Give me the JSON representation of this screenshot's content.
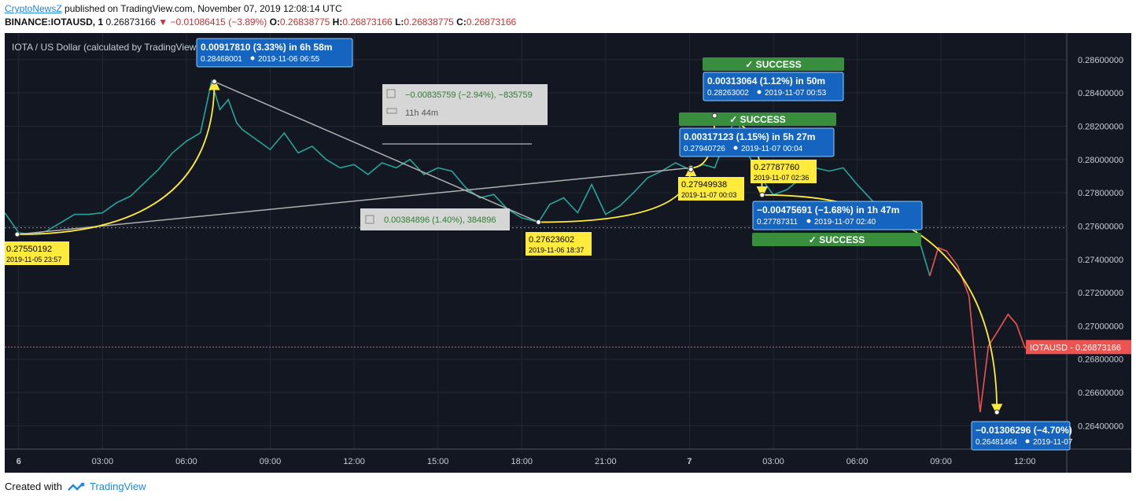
{
  "header": {
    "publisher": "CryptoNewsZ",
    "published_text": " published on TradingView.com, November 07, 2019 12:08:14 UTC",
    "symbol": "BINANCE:IOTAUSD, 1",
    "last": "0.26873166",
    "arrow": "▼",
    "change": "−0.01086415 (−3.89%)",
    "o_label": "O:",
    "o_value": "0.26838775",
    "h_label": "H:",
    "h_value": "0.26873166",
    "l_label": "L:",
    "l_value": "0.26838775",
    "c_label": "C:",
    "c_value": "0.26873166"
  },
  "footer": {
    "created_with": "Created with",
    "brand": "TradingView"
  },
  "colors": {
    "background": "#131722",
    "up": "#26a69a",
    "down": "#ef5350",
    "annotation_yellow": "#ffeb3b",
    "callout_blue": "#1565c0",
    "success_green": "#388e3c",
    "trendline": "#b0b0b0"
  },
  "chart_data": {
    "type": "line",
    "title": "IOTA / US Dollar (calculated by TradingView) BINANCE",
    "symbol_label": "IOTAUSD",
    "last_price": 0.26873166,
    "ylim": [
      0.2626,
      0.2876
    ],
    "y_ticks": [
      0.286,
      0.284,
      0.282,
      0.28,
      0.278,
      0.276,
      0.274,
      0.272,
      0.27,
      0.268,
      0.266,
      0.264
    ],
    "y_tick_labels": [
      "0.28600000",
      "0.28400000",
      "0.28200000",
      "0.28000000",
      "0.27800000",
      "0.27600000",
      "0.27400000",
      "0.27200000",
      "0.27000000",
      "0.26800000",
      "0.26600000",
      "0.26400000"
    ],
    "x_range_hours": [
      -0.5,
      37.5
    ],
    "x_ticks": [
      0,
      3,
      6,
      9,
      12,
      15,
      18,
      21,
      24,
      27,
      30,
      33,
      36
    ],
    "x_tick_labels": [
      "6",
      "03:00",
      "06:00",
      "09:00",
      "12:00",
      "15:00",
      "18:00",
      "21:00",
      "7",
      "03:00",
      "06:00",
      "09:00",
      "12:00"
    ],
    "series": [
      {
        "x": [
          -0.5,
          0,
          0.5,
          1,
          1.5,
          2,
          2.5,
          3,
          3.5,
          4,
          4.5,
          5,
          5.5,
          6,
          6.5,
          6.9,
          7.2,
          7.5,
          7.8,
          8,
          8.5,
          9,
          9.5,
          10,
          10.5,
          11,
          11.5,
          12,
          12.5,
          13,
          13.5,
          14,
          14.5,
          15,
          15.5,
          16,
          16.5,
          17,
          17.5,
          18,
          18.6,
          19,
          19.5,
          20,
          20.5,
          21,
          21.5,
          22,
          22.5,
          23,
          23.5,
          24,
          24.5,
          24.9,
          25.3,
          25.7,
          26,
          26.3,
          26.6,
          27,
          27.5,
          28,
          28.5,
          29,
          29.5,
          30,
          30.5,
          31,
          31.5,
          32,
          32.6,
          32.9,
          33.2,
          33.6,
          34,
          34.4,
          34.7,
          35,
          35.4,
          35.7,
          36,
          36.3
        ],
        "y": [
          0.2768,
          0.2756,
          0.2755,
          0.2757,
          0.2762,
          0.2767,
          0.2767,
          0.2768,
          0.2774,
          0.2778,
          0.2786,
          0.2794,
          0.2804,
          0.2811,
          0.2816,
          0.28468,
          0.283,
          0.2836,
          0.2822,
          0.2818,
          0.2812,
          0.2806,
          0.2816,
          0.2804,
          0.2808,
          0.28,
          0.2795,
          0.2797,
          0.2791,
          0.2798,
          0.2795,
          0.28,
          0.2791,
          0.2795,
          0.2793,
          0.2783,
          0.2777,
          0.2779,
          0.277,
          0.2765,
          0.27623602,
          0.2773,
          0.2777,
          0.2768,
          0.2785,
          0.2767,
          0.2772,
          0.278,
          0.2789,
          0.2793,
          0.2798,
          0.2794,
          0.2797,
          0.27949938,
          0.2812,
          0.28263002,
          0.2806,
          0.2797,
          0.2788,
          0.27787311,
          0.2782,
          0.2789,
          0.2795,
          0.2793,
          0.2795,
          0.2785,
          0.2776,
          0.2768,
          0.2772,
          0.2764,
          0.273,
          0.2747,
          0.2745,
          0.2736,
          0.2718,
          0.26481464,
          0.2688,
          0.2696,
          0.2707,
          0.2701,
          0.2687,
          0.2687
        ]
      }
    ],
    "color_change_at_hour": 32.6,
    "labels": [
      {
        "x": -0.05,
        "y": 0.27550192,
        "price": "0.27550192",
        "time": "2019-11-05 23:57"
      },
      {
        "x": 18.6,
        "y": 0.27623602,
        "price": "0.27623602",
        "time": "2019-11-06 18:37"
      },
      {
        "x": 24.05,
        "y": 0.27949938,
        "price": "0.27949938",
        "time": "2019-11-07 00:03"
      },
      {
        "x": 26.6,
        "y": 0.2778776,
        "price": "0.27787760",
        "time": "2019-11-07 02:36"
      }
    ],
    "callouts": [
      {
        "x": 7.0,
        "y": 0.28468001,
        "line1": "0.00917810 (3.33%) in 6h 58m",
        "price": "0.28468001",
        "time": "2019-11-06  06:55"
      },
      {
        "x": 24.9,
        "y": 0.28263002,
        "line1": "0.00313064 (1.12%) in 50m",
        "price": "0.28263002",
        "time": "2019-11-07  00:53"
      },
      {
        "x": 24.05,
        "y": 0.27940726,
        "line1": "0.00317123 (1.15%) in 5h 27m",
        "price": "0.27940726",
        "time": "2019-11-07  00:04"
      },
      {
        "x": 26.6,
        "y": 0.27787311,
        "line1": "−0.00475691 (−1.68%) in 1h 47m",
        "price": "0.27787311",
        "time": "2019-11-07  02:40"
      },
      {
        "x": 35.0,
        "y": 0.26481464,
        "line1": "−0.01306296 (−4.70%)",
        "price": "0.26481464",
        "time": "2019-11-07"
      }
    ],
    "success_labels": [
      "✓ SUCCESS",
      "✓ SUCCESS",
      "✓ SUCCESS"
    ],
    "measure_boxes": [
      {
        "line1": "−0.00835759 (−2.94%), −835759",
        "line2": "11h 44m"
      },
      {
        "line1": "0.00384896 (1.40%), 384896"
      }
    ],
    "trend_lines": [
      {
        "from": [
          -0.05,
          0.27550192
        ],
        "to": [
          24.05,
          0.27949938
        ]
      },
      {
        "from": [
          7.0,
          0.28468001
        ],
        "to": [
          18.6,
          0.27623602
        ]
      }
    ],
    "arrow_paths": [
      {
        "from": [
          -0.05,
          0.27550192
        ],
        "to": [
          7.0,
          0.28468001
        ]
      },
      {
        "from": [
          18.6,
          0.27623602
        ],
        "to": [
          24.05,
          0.27949938
        ]
      },
      {
        "from": [
          24.05,
          0.27949938
        ],
        "to": [
          24.9,
          0.28263002
        ]
      },
      {
        "from": [
          24.9,
          0.28263002
        ],
        "to": [
          26.6,
          0.27787311
        ]
      },
      {
        "from": [
          26.6,
          0.27787311
        ],
        "to": [
          35.0,
          0.26481464
        ]
      }
    ],
    "grid": true,
    "legend": "none"
  }
}
